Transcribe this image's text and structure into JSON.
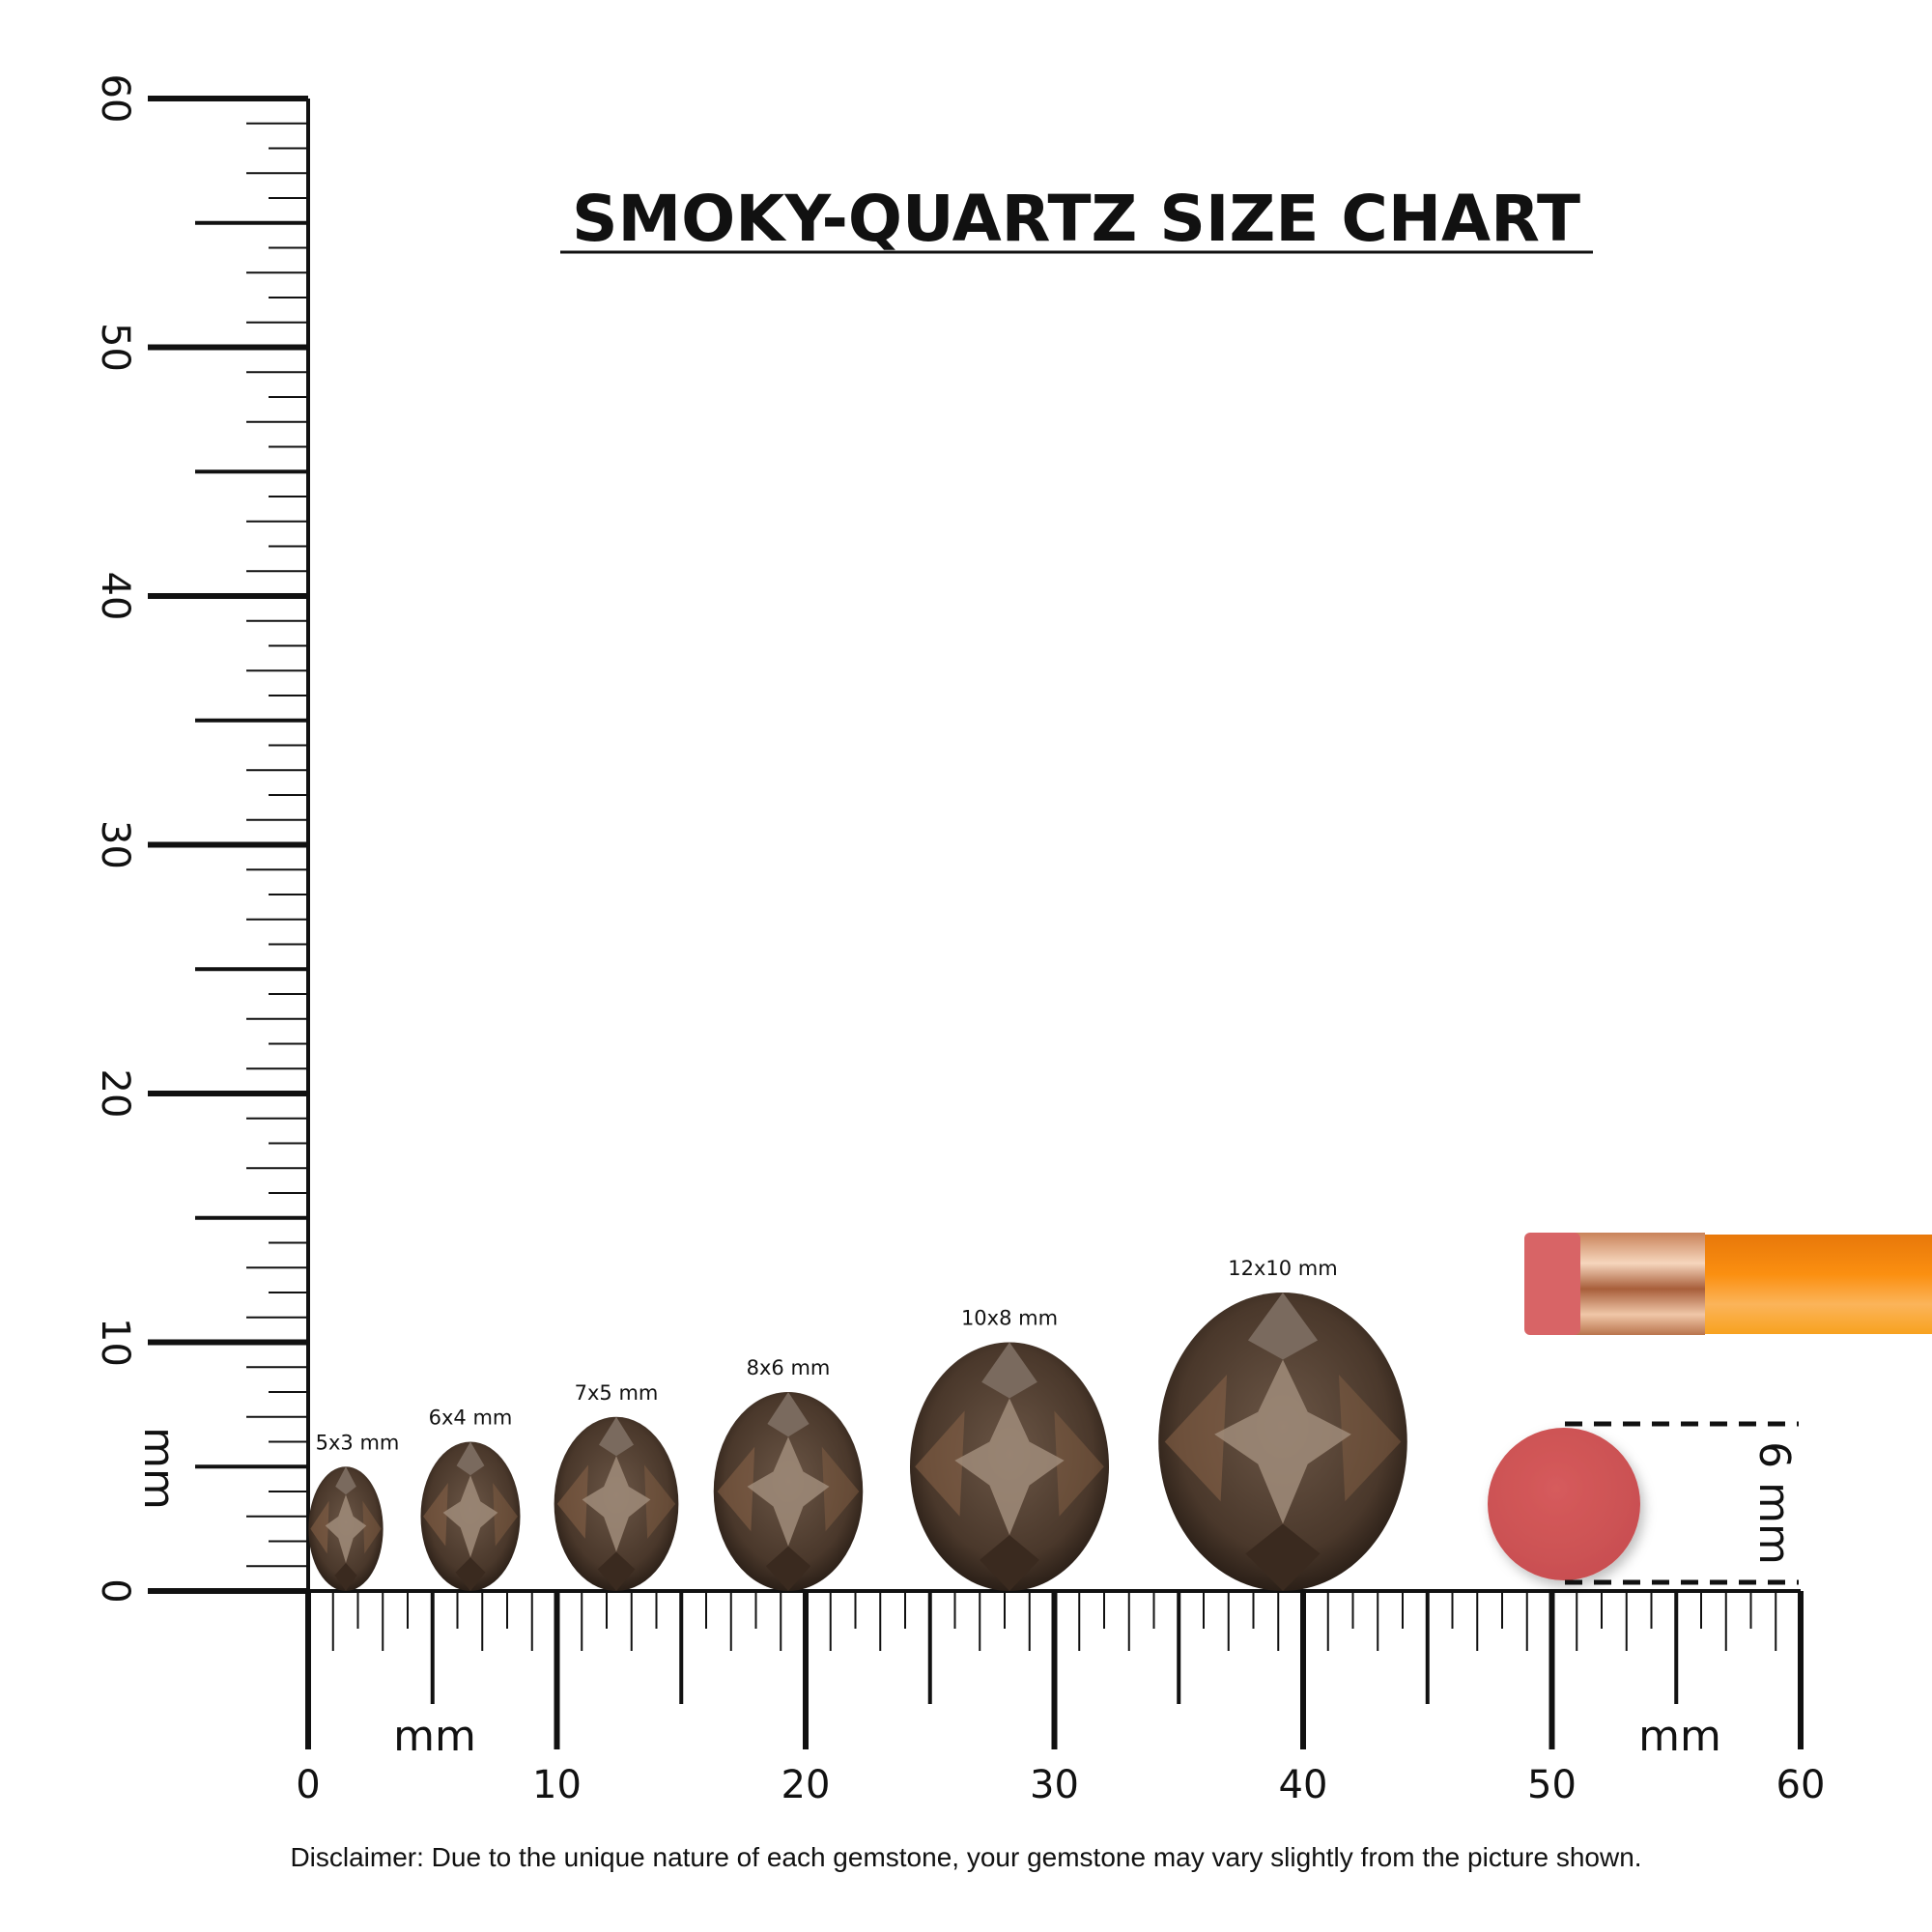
{
  "title": "SMOKY-QUARTZ SIZE CHART",
  "vertical_ruler": {
    "unit_label": "mm",
    "labels": [
      "0",
      "10",
      "20",
      "30",
      "40",
      "50",
      "60"
    ],
    "max_mm": 60
  },
  "horizontal_ruler": {
    "unit_label": "mm",
    "labels": [
      "0",
      "10",
      "20",
      "30",
      "40",
      "50",
      "60"
    ],
    "max_mm": 60
  },
  "gems": [
    {
      "label": "5x3 mm",
      "length_mm": 5,
      "width_mm": 3
    },
    {
      "label": "6x4 mm",
      "length_mm": 6,
      "width_mm": 4
    },
    {
      "label": "7x5 mm",
      "length_mm": 7,
      "width_mm": 5
    },
    {
      "label": "8x6 mm",
      "length_mm": 8,
      "width_mm": 6
    },
    {
      "label": "10x8 mm",
      "length_mm": 10,
      "width_mm": 8
    },
    {
      "label": "12x10 mm",
      "length_mm": 12,
      "width_mm": 10
    }
  ],
  "eraser_reference": {
    "label": "6 mm",
    "diameter_mm": 6
  },
  "disclaimer": "Disclaimer: Due to the unique nature of each gemstone, your gemstone may vary slightly from the picture shown.",
  "colors": {
    "gem_dark": "#2e2118",
    "gem_mid": "#6b5646",
    "gem_light": "#a08c7a",
    "eraser": "#d2585a",
    "pencil": "#f7940f",
    "ferrule": "#e0a27c"
  }
}
